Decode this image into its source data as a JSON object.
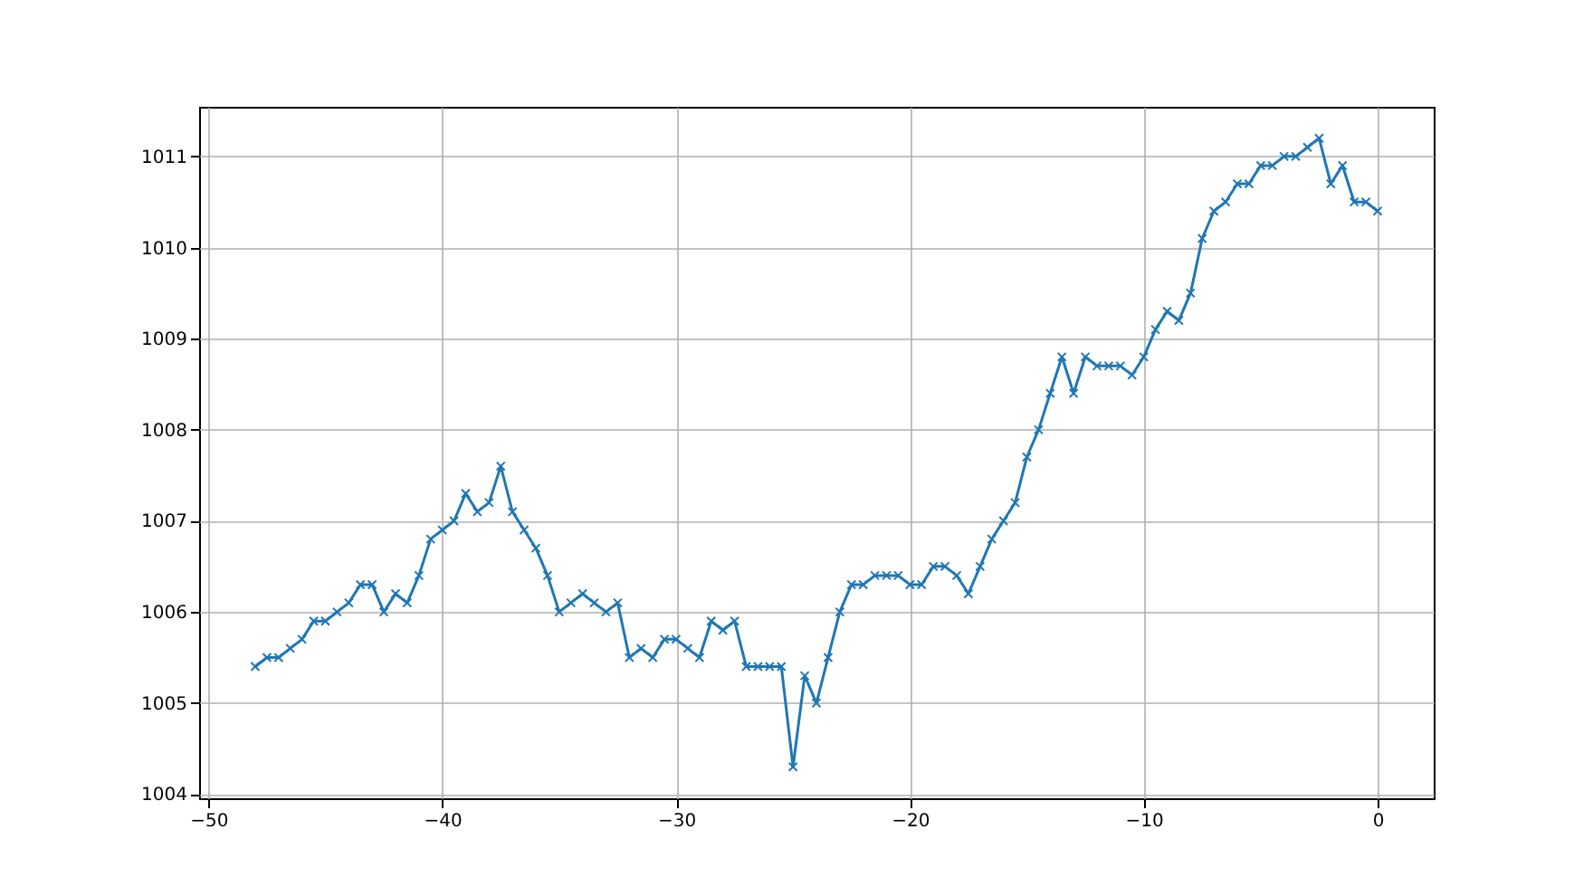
{
  "chart_data": {
    "type": "line",
    "x": [
      -48,
      -47.5,
      -47,
      -46.5,
      -46,
      -45.5,
      -45,
      -44.5,
      -44,
      -43.5,
      -43,
      -42.5,
      -42,
      -41.5,
      -41,
      -40.5,
      -40,
      -39.5,
      -39,
      -38.5,
      -38,
      -37.5,
      -37,
      -36.5,
      -36,
      -35.5,
      -35,
      -34.5,
      -34,
      -33.5,
      -33,
      -32.5,
      -32,
      -31.5,
      -31,
      -30.5,
      -30,
      -29.5,
      -29,
      -28.5,
      -28,
      -27.5,
      -27,
      -26.5,
      -26,
      -25.5,
      -25,
      -24.5,
      -24,
      -23.5,
      -23,
      -22.5,
      -22,
      -21.5,
      -21,
      -20.5,
      -20,
      -19.5,
      -19,
      -18.5,
      -18,
      -17.5,
      -17,
      -16.5,
      -16,
      -15.5,
      -15,
      -14.5,
      -14,
      -13.5,
      -13,
      -12.5,
      -12,
      -11.5,
      -11,
      -10.5,
      -10,
      -9.5,
      -9,
      -8.5,
      -8,
      -7.5,
      -7,
      -6.5,
      -6,
      -5.5,
      -5,
      -4.5,
      -4,
      -3.5,
      -3,
      -2.5,
      -2,
      -1.5,
      -1,
      -0.5,
      0
    ],
    "series": [
      {
        "color": "#1f77b4",
        "values": [
          1005.4,
          1005.5,
          1005.5,
          1005.6,
          1005.7,
          1005.9,
          1005.9,
          1006.0,
          1006.1,
          1006.3,
          1006.3,
          1006.0,
          1006.2,
          1006.1,
          1006.4,
          1006.8,
          1006.9,
          1007.0,
          1007.3,
          1007.1,
          1007.2,
          1007.6,
          1007.1,
          1006.9,
          1006.7,
          1006.4,
          1006.0,
          1006.1,
          1006.2,
          1006.1,
          1006.0,
          1006.1,
          1005.5,
          1005.6,
          1005.5,
          1005.7,
          1005.7,
          1005.6,
          1005.5,
          1005.9,
          1005.8,
          1005.9,
          1005.4,
          1005.4,
          1005.4,
          1005.4,
          1004.3,
          1005.3,
          1005.0,
          1005.5,
          1006.0,
          1006.3,
          1006.3,
          1006.4,
          1006.4,
          1006.4,
          1006.3,
          1006.3,
          1006.5,
          1006.5,
          1006.4,
          1006.2,
          1006.5,
          1006.8,
          1007.0,
          1007.2,
          1007.7,
          1008.0,
          1008.4,
          1008.8,
          1008.4,
          1008.8,
          1008.7,
          1008.7,
          1008.7,
          1008.6,
          1008.8,
          1009.1,
          1009.3,
          1009.2,
          1009.5,
          1010.1,
          1010.4,
          1010.5,
          1010.7,
          1010.7,
          1010.9,
          1010.9,
          1011.0,
          1011.0,
          1011.1,
          1011.2,
          1010.7,
          1010.9,
          1010.5,
          1010.5,
          1010.4
        ]
      }
    ],
    "xlim": [
      -50.4,
      2.4
    ],
    "xticks": [
      -50,
      -40,
      -30,
      -20,
      -10,
      0
    ],
    "ylim": [
      1003.955,
      1011.545
    ],
    "yticks": [
      1004,
      1005,
      1006,
      1007,
      1008,
      1009,
      1010,
      1011
    ],
    "grid": true,
    "marker": "cross",
    "line_style": "solid"
  }
}
